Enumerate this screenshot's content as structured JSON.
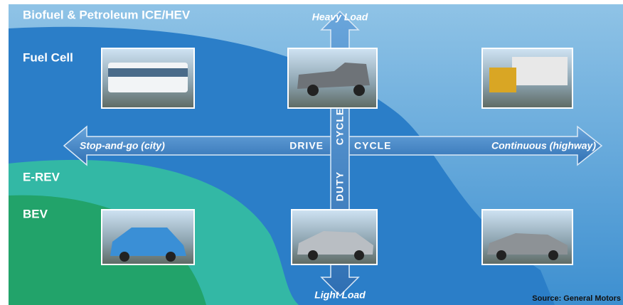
{
  "regions": [
    {
      "label": "Biofuel & Petroleum ICE/HEV"
    },
    {
      "label": "Fuel Cell"
    },
    {
      "label": "E-REV"
    },
    {
      "label": "BEV"
    }
  ],
  "axis": {
    "top": "Heavy Load",
    "bottom": "Light Load",
    "left": "Stop-and-go (city)",
    "right": "Continuous (highway)",
    "horizontal_left": "DRIVE",
    "horizontal_right": "CYCLE",
    "vertical_top": "CYCLE",
    "vertical_bottom": "DUTY"
  },
  "source": "Source: General Motors"
}
